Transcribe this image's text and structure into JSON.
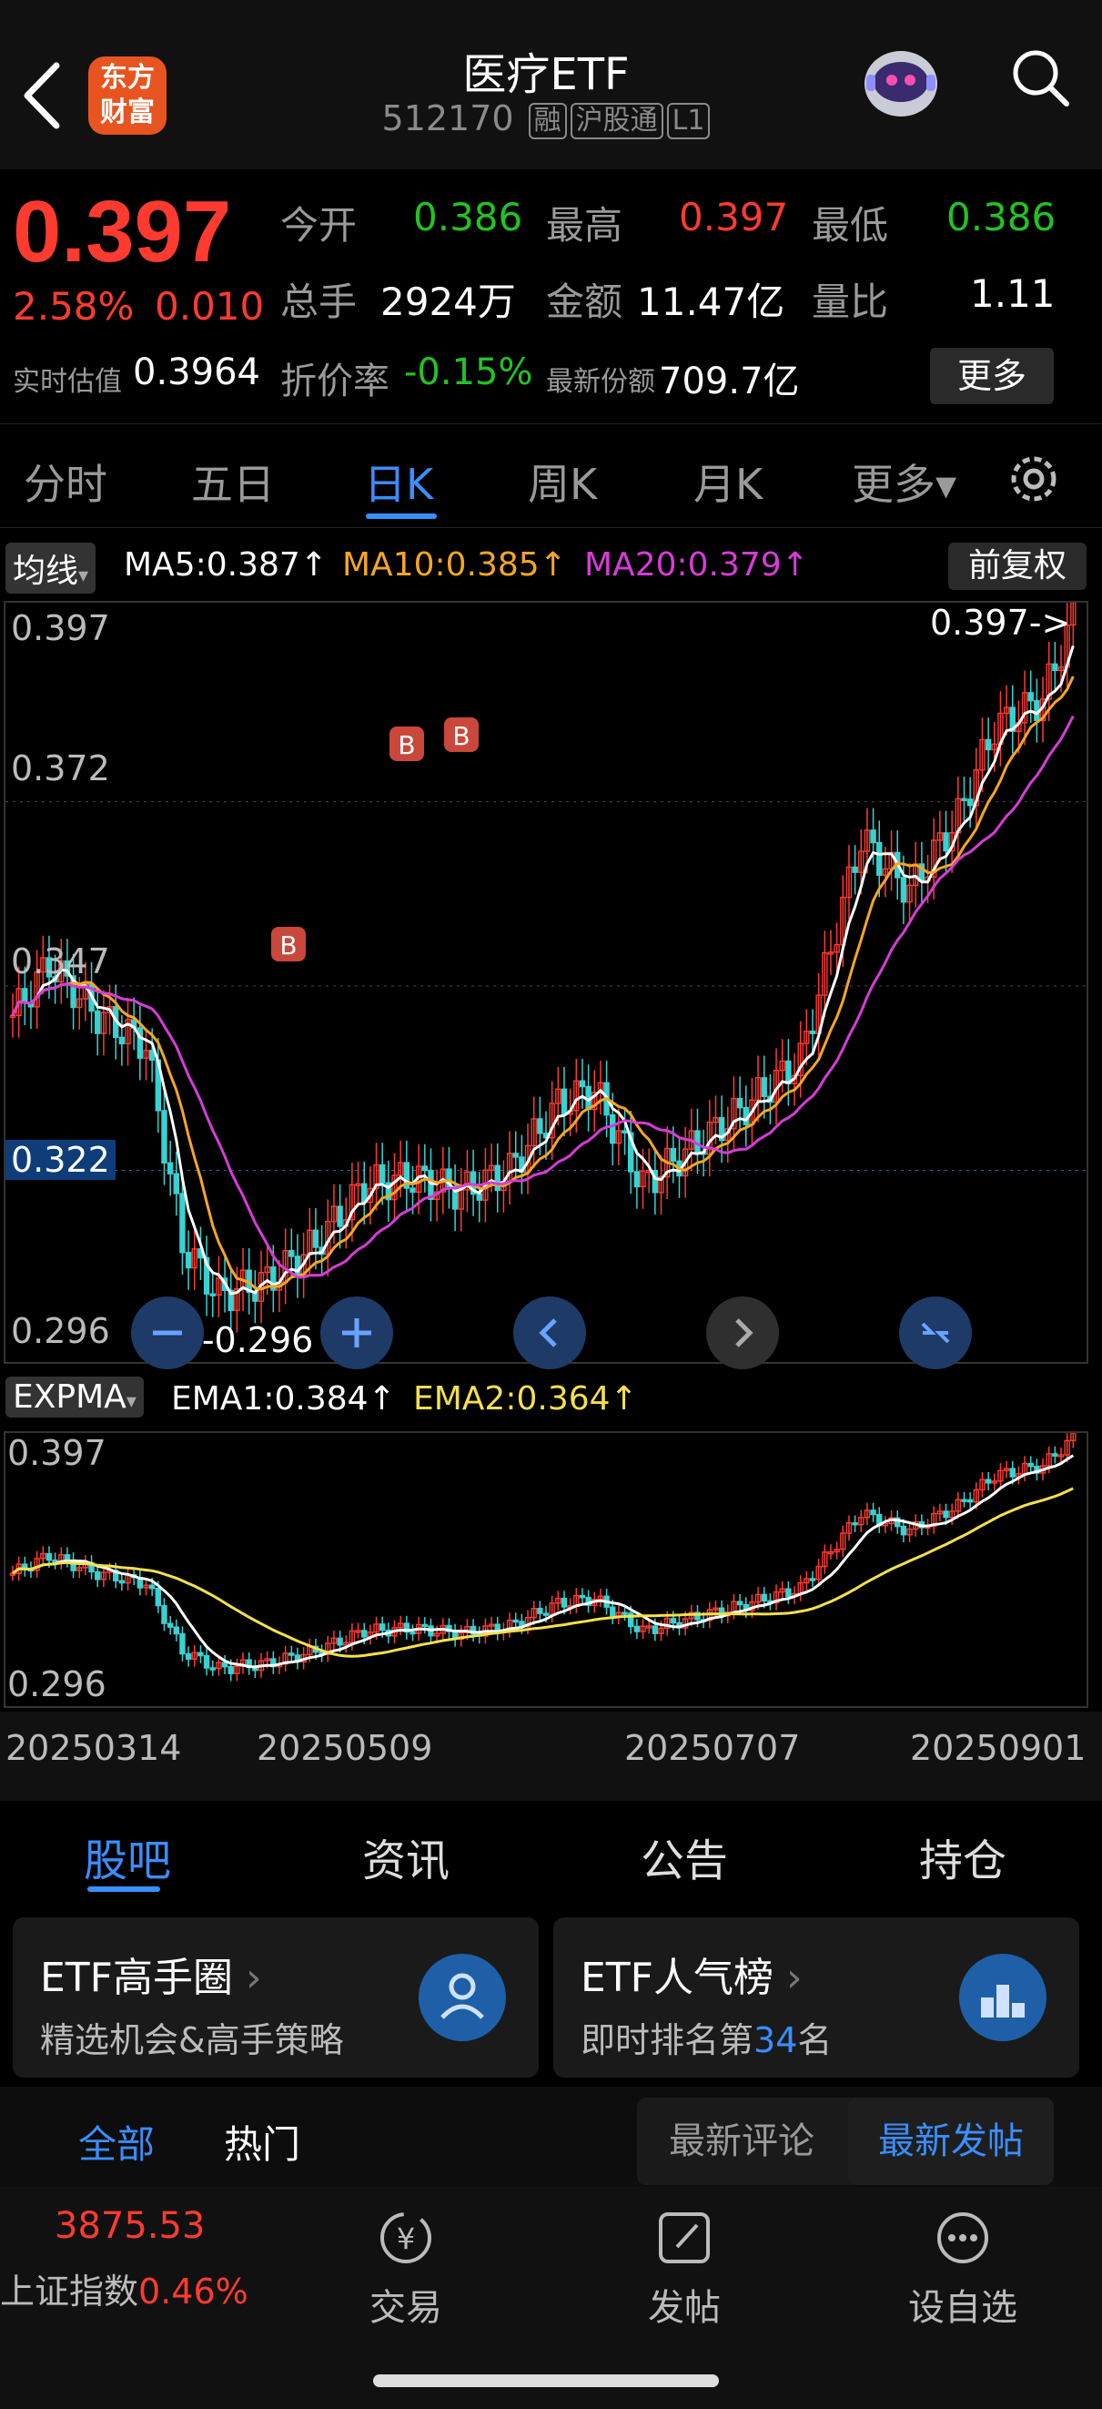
{
  "header": {
    "title": "医疗ETF",
    "code": "512170",
    "tags": [
      "融",
      "沪股通",
      "L1"
    ],
    "logo_line1": "东方",
    "logo_line2": "财富"
  },
  "quote": {
    "price": "0.397",
    "change_pct": "2.58%",
    "change": "0.010",
    "open_label": "今开",
    "open": "0.386",
    "high_label": "最高",
    "high": "0.397",
    "low_label": "最低",
    "low": "0.386",
    "volume_label": "总手",
    "volume": "2924万",
    "amount_label": "金额",
    "amount": "11.47亿",
    "ratio_label": "量比",
    "ratio": "1.11",
    "iopv_label": "实时估值",
    "iopv": "0.3964",
    "premium_label": "折价率",
    "premium": "-0.15%",
    "shares_label": "最新份额",
    "shares": "709.7亿",
    "more": "更多"
  },
  "period_tabs": [
    "分时",
    "五日",
    "日K",
    "周K",
    "月K",
    "更多▾"
  ],
  "active_tab": "日K",
  "ma_bar": {
    "selector": "均线",
    "ma5": "MA5:0.387↑",
    "ma10": "MA10:0.385↑",
    "ma20": "MA20:0.379↑",
    "adjust": "前复权",
    "ma5_color": "#ffffff",
    "ma10_color": "#f5a623",
    "ma20_color": "#d63cd6"
  },
  "main_chart": {
    "y_top": "0.397",
    "y_2": "0.372",
    "y_3": "0.347",
    "y_current": "0.322",
    "y_bottom": "0.296",
    "max_note": "0.397->",
    "min_note": "<-0.296",
    "buy_marker": "B"
  },
  "ex_bar": {
    "selector": "EXPMA",
    "ema1": "EMA1:0.384↑",
    "ema2": "EMA2:0.364↑",
    "ema2_color": "#f5e04a"
  },
  "sub_chart": {
    "y_top": "0.397",
    "y_bottom": "0.296"
  },
  "x_axis": [
    "20250314",
    "20250509",
    "20250707",
    "20250901"
  ],
  "section_tabs": [
    "股吧",
    "资讯",
    "公告",
    "持仓"
  ],
  "active_section": "股吧",
  "cards": [
    {
      "title": "ETF高手圈",
      "sub": "精选机会&高手策略"
    },
    {
      "title": "ETF人气榜",
      "sub_prefix": "即时排名第",
      "rank": "34",
      "sub_suffix": "名"
    }
  ],
  "filters": {
    "all": "全部",
    "hot": "热门",
    "latest_comment": "最新评论",
    "latest_post": "最新发帖"
  },
  "bottom_bar": {
    "index_value": "3875.53",
    "index_name": "上证指数",
    "index_change": "0.46%",
    "trade": "交易",
    "post": "发帖",
    "watch": "设自选"
  }
}
